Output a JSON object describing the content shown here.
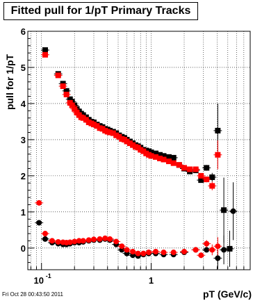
{
  "page": {
    "title": "Fitted pull for 1/pT  Primary Tracks",
    "footer": "Fri Oct 28 00:43:50 2011"
  },
  "chart_data": {
    "type": "scatter",
    "title": "Fitted pull for 1/pT  Primary Tracks",
    "xlabel": "pT (GeV/c)",
    "ylabel": "pull for 1/pT",
    "xscale": "log",
    "xlim": [
      0.075,
      8.0
    ],
    "ylim": [
      -0.6,
      6.0
    ],
    "x_tick_labels": [
      {
        "x": 0.1,
        "base": "10",
        "exp": "-1"
      },
      {
        "x": 1,
        "base": "1",
        "exp": ""
      }
    ],
    "y_ticks": [
      0,
      1,
      2,
      3,
      4,
      5,
      6
    ],
    "grid": true,
    "colors": {
      "series_black": "#000000",
      "series_red": "#ff0000"
    },
    "series": [
      {
        "color": "#000000",
        "marker": "square",
        "x": [
          0.108,
          0.142,
          0.157,
          0.169,
          0.182,
          0.19,
          0.2,
          0.21,
          0.22,
          0.23,
          0.24,
          0.255,
          0.27,
          0.285,
          0.3,
          0.32,
          0.34,
          0.36,
          0.38,
          0.4,
          0.42,
          0.45,
          0.48,
          0.51,
          0.54,
          0.57,
          0.6,
          0.64,
          0.68,
          0.72,
          0.76,
          0.8,
          0.85,
          0.9,
          0.95,
          1.0,
          1.1,
          1.2,
          1.3,
          1.45,
          1.6,
          1.8,
          2.0,
          2.25,
          2.55,
          2.85,
          3.2,
          3.6,
          4.05,
          4.6,
          5.2
        ],
        "y": [
          5.48,
          4.82,
          4.55,
          4.35,
          4.12,
          4.05,
          3.95,
          3.85,
          3.78,
          3.72,
          3.68,
          3.62,
          3.55,
          3.5,
          3.48,
          3.42,
          3.38,
          3.35,
          3.3,
          3.28,
          3.25,
          3.22,
          3.18,
          3.12,
          3.08,
          3.05,
          3.0,
          2.95,
          2.9,
          2.85,
          2.82,
          2.78,
          2.72,
          2.7,
          2.68,
          2.65,
          2.62,
          2.58,
          2.55,
          2.52,
          2.5,
          2.3,
          2.2,
          2.12,
          2.15,
          1.88,
          2.22,
          1.96,
          3.25,
          1.05,
          -0.02
        ],
        "err": [
          0,
          0,
          0,
          0,
          0,
          0,
          0,
          0,
          0,
          0,
          0,
          0,
          0,
          0,
          0,
          0,
          0,
          0,
          0,
          0,
          0,
          0,
          0,
          0,
          0,
          0,
          0,
          0,
          0,
          0,
          0,
          0,
          0,
          0,
          0,
          0,
          0,
          0,
          0,
          0,
          0,
          0,
          0,
          0,
          0,
          0.05,
          0.08,
          0.12,
          0.75,
          0.9,
          0.5
        ]
      },
      {
        "color": "#ff0000",
        "marker": "square",
        "x": [
          0.108,
          0.142,
          0.157,
          0.169,
          0.182,
          0.19,
          0.2,
          0.21,
          0.22,
          0.23,
          0.24,
          0.255,
          0.27,
          0.285,
          0.3,
          0.32,
          0.34,
          0.36,
          0.38,
          0.4,
          0.42,
          0.45,
          0.48,
          0.51,
          0.54,
          0.57,
          0.6,
          0.64,
          0.68,
          0.72,
          0.76,
          0.8,
          0.85,
          0.9,
          0.95,
          1.0,
          1.1,
          1.2,
          1.3,
          1.45,
          1.6,
          1.8,
          2.0,
          2.25,
          2.55,
          2.85,
          3.2,
          3.6,
          4.05
        ],
        "y": [
          5.35,
          4.78,
          4.48,
          4.25,
          4.02,
          3.95,
          3.85,
          3.75,
          3.68,
          3.62,
          3.6,
          3.55,
          3.48,
          3.45,
          3.42,
          3.38,
          3.32,
          3.3,
          3.25,
          3.22,
          3.2,
          3.18,
          3.12,
          3.08,
          3.02,
          3.0,
          2.95,
          2.9,
          2.85,
          2.8,
          2.78,
          2.72,
          2.68,
          2.62,
          2.58,
          2.55,
          2.52,
          2.48,
          2.45,
          2.4,
          2.35,
          2.3,
          2.22,
          2.18,
          2.18,
          2.0,
          1.9,
          1.72,
          2.58
        ],
        "err": [
          0,
          0,
          0,
          0,
          0,
          0,
          0,
          0,
          0,
          0,
          0,
          0,
          0,
          0,
          0,
          0,
          0,
          0,
          0,
          0,
          0,
          0,
          0,
          0,
          0,
          0,
          0,
          0,
          0,
          0,
          0,
          0,
          0,
          0,
          0,
          0,
          0,
          0,
          0,
          0,
          0,
          0,
          0,
          0,
          0,
          0.05,
          0.08,
          0.12,
          0.4
        ]
      },
      {
        "color": "#000000",
        "marker": "circle",
        "x": [
          0.095,
          0.108,
          0.125,
          0.142,
          0.157,
          0.169,
          0.182,
          0.2,
          0.22,
          0.24,
          0.27,
          0.3,
          0.34,
          0.38,
          0.42,
          0.48,
          0.54,
          0.6,
          0.68,
          0.76,
          0.85,
          0.95,
          1.1,
          1.3,
          1.6,
          2.0,
          2.55,
          3.2,
          4.05,
          4.6,
          5.6
        ],
        "y": [
          0.7,
          0.25,
          0.15,
          0.12,
          0.1,
          0.1,
          0.12,
          0.15,
          0.15,
          0.17,
          0.2,
          0.22,
          0.22,
          0.25,
          0.22,
          0.1,
          -0.05,
          -0.15,
          -0.2,
          -0.22,
          -0.18,
          -0.15,
          -0.15,
          -0.18,
          -0.18,
          -0.12,
          -0.05,
          -0.05,
          -0.28,
          -0.05,
          1.02
        ],
        "err": [
          0,
          0,
          0,
          0,
          0,
          0,
          0,
          0,
          0,
          0,
          0,
          0,
          0,
          0,
          0,
          0,
          0,
          0,
          0,
          0,
          0,
          0,
          0,
          0,
          0,
          0,
          0,
          0,
          0.3,
          0.4,
          0.8
        ]
      },
      {
        "color": "#ff0000",
        "marker": "circle",
        "x": [
          0.095,
          0.108,
          0.125,
          0.142,
          0.157,
          0.169,
          0.182,
          0.2,
          0.22,
          0.24,
          0.27,
          0.3,
          0.34,
          0.38,
          0.42,
          0.48,
          0.54,
          0.6,
          0.68,
          0.76,
          0.85,
          0.95,
          1.1,
          1.3,
          1.6,
          2.0,
          2.55,
          2.85,
          3.2,
          3.6,
          4.05
        ],
        "y": [
          1.25,
          0.4,
          0.2,
          0.17,
          0.16,
          0.15,
          0.16,
          0.18,
          0.2,
          0.2,
          0.22,
          0.24,
          0.25,
          0.27,
          0.25,
          0.18,
          0.05,
          -0.05,
          -0.1,
          -0.15,
          -0.15,
          -0.12,
          -0.1,
          -0.12,
          -0.12,
          -0.1,
          -0.05,
          -0.2,
          0.12,
          -0.05,
          0.05
        ],
        "err": [
          0,
          0,
          0,
          0,
          0,
          0,
          0,
          0,
          0,
          0,
          0,
          0,
          0,
          0,
          0,
          0,
          0,
          0,
          0,
          0,
          0,
          0,
          0,
          0.05,
          0.05,
          0.05,
          0.05,
          0.08,
          0.1,
          0.15,
          0.25
        ]
      }
    ]
  }
}
